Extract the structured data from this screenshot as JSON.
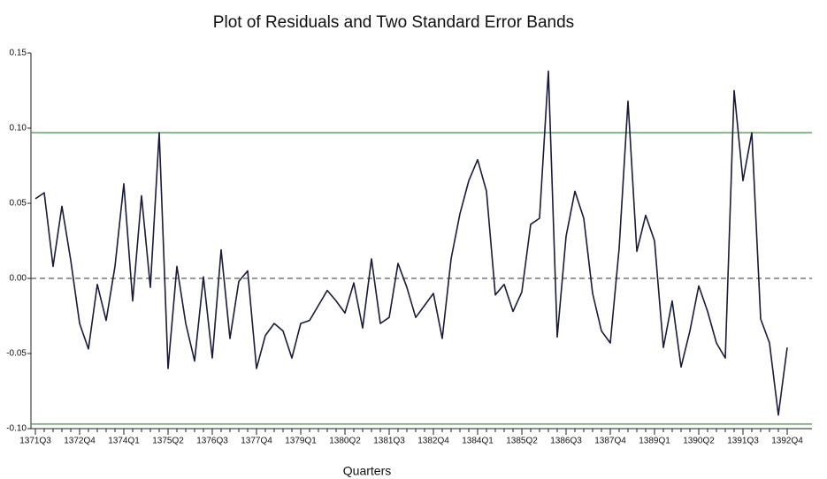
{
  "chart_data": {
    "type": "line",
    "title": "Plot of Residuals and Two Standard Error Bands",
    "x_label": "Quarters",
    "categories": [
      "1371Q3",
      null,
      null,
      null,
      null,
      "1372Q4",
      null,
      null,
      null,
      null,
      "1374Q1",
      null,
      null,
      null,
      null,
      "1375Q2",
      null,
      null,
      null,
      null,
      "1376Q3",
      null,
      null,
      null,
      null,
      "1377Q4",
      null,
      null,
      null,
      null,
      "1379Q1",
      null,
      null,
      null,
      null,
      "1380Q2",
      null,
      null,
      null,
      null,
      "1381Q3",
      null,
      null,
      null,
      null,
      "1382Q4",
      null,
      null,
      null,
      null,
      "1384Q1",
      null,
      null,
      null,
      null,
      "1385Q2",
      null,
      null,
      null,
      null,
      "1386Q3",
      null,
      null,
      null,
      null,
      "1387Q4",
      null,
      null,
      null,
      null,
      "1389Q1",
      null,
      null,
      null,
      null,
      "1390Q2",
      null,
      null,
      null,
      null,
      "1391Q3",
      null,
      null,
      null,
      null,
      "1392Q4"
    ],
    "values": [
      0.053,
      0.057,
      0.008,
      0.048,
      0.012,
      -0.03,
      -0.047,
      -0.004,
      -0.028,
      0.008,
      0.063,
      -0.015,
      0.055,
      -0.006,
      0.097,
      -0.06,
      0.008,
      -0.03,
      -0.055,
      0.001,
      -0.053,
      0.019,
      -0.04,
      -0.002,
      0.005,
      -0.06,
      -0.038,
      -0.03,
      -0.035,
      -0.053,
      -0.03,
      -0.028,
      -0.018,
      -0.008,
      -0.015,
      -0.023,
      -0.003,
      -0.033,
      0.013,
      -0.03,
      -0.026,
      0.01,
      -0.006,
      -0.026,
      -0.018,
      -0.01,
      -0.04,
      0.013,
      0.043,
      0.065,
      0.079,
      0.058,
      -0.011,
      -0.004,
      -0.022,
      -0.009,
      0.036,
      0.04,
      0.138,
      -0.039,
      0.028,
      0.058,
      0.04,
      -0.01,
      -0.035,
      -0.043,
      0.02,
      0.118,
      0.018,
      0.042,
      0.025,
      -0.046,
      -0.015,
      -0.059,
      -0.035,
      -0.005,
      -0.022,
      -0.043,
      -0.053,
      0.125,
      0.065,
      0.097,
      -0.027,
      -0.043,
      -0.091,
      -0.046
    ],
    "color": "#1a1a3a",
    "bands": [
      0.097,
      -0.097
    ],
    "band_color": "#4a8a4a",
    "zero_line": 0,
    "ylim": [
      -0.1,
      0.15
    ],
    "yticks": [
      {
        "value": 0.15,
        "label": "0.15"
      },
      {
        "value": 0.1,
        "label": "0.10"
      },
      {
        "value": 0.05,
        "label": "0.05"
      },
      {
        "value": 0,
        "label": "0.00"
      },
      {
        "value": -0.05,
        "label": "-0.05"
      },
      {
        "value": -0.1,
        "label": "-0.10"
      }
    ]
  }
}
